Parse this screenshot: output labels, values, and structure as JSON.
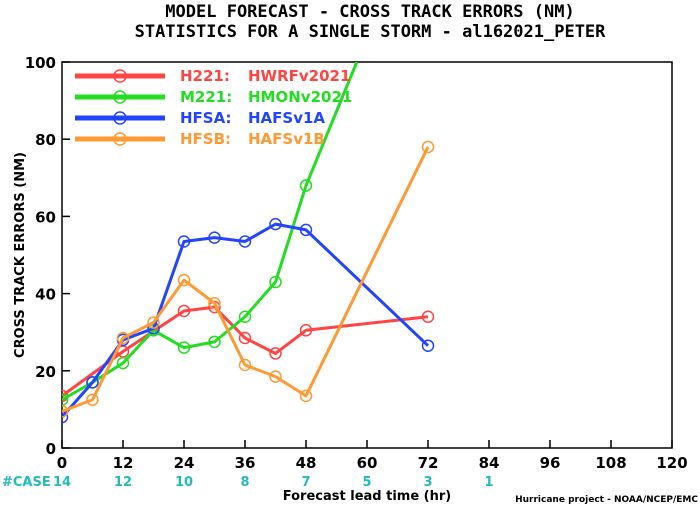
{
  "chart_data": {
    "type": "line",
    "title": "MODEL FORECAST - CROSS TRACK ERRORS (NM)",
    "subtitle": "STATISTICS FOR A SINGLE STORM - al162021_PETER",
    "xlabel": "Forecast lead time (hr)",
    "ylabel": "CROSS TRACK ERRORS (NM)",
    "xlim": [
      0,
      120
    ],
    "ylim": [
      0,
      100
    ],
    "x_ticks": [
      0,
      12,
      24,
      36,
      48,
      60,
      72,
      84,
      96,
      108,
      120
    ],
    "y_ticks": [
      0,
      20,
      40,
      60,
      80,
      100
    ],
    "grid": false,
    "legend_position": "top-left",
    "case_label": "#CASE",
    "cases": [
      {
        "x": 0,
        "label": "14"
      },
      {
        "x": 12,
        "label": "12"
      },
      {
        "x": 24,
        "label": "10"
      },
      {
        "x": 36,
        "label": "8"
      },
      {
        "x": 48,
        "label": "7"
      },
      {
        "x": 60,
        "label": "5"
      },
      {
        "x": 72,
        "label": "3"
      },
      {
        "x": 84,
        "label": "1"
      }
    ],
    "series": [
      {
        "name": "H221:",
        "legend_label": "HWRFv2021",
        "color": "#ff4444",
        "x": [
          0,
          12,
          24,
          30,
          36,
          42,
          48,
          72
        ],
        "y": [
          13.5,
          25,
          35.5,
          36.5,
          28.5,
          24.5,
          30.5,
          34
        ]
      },
      {
        "name": "M221:",
        "legend_label": "HMONv2021",
        "color": "#22dd22",
        "x": [
          0,
          6,
          12,
          18,
          24,
          30,
          36,
          42,
          48,
          58
        ],
        "y": [
          12.5,
          17,
          22,
          30.5,
          26,
          27.5,
          34,
          43,
          68,
          100
        ]
      },
      {
        "name": "HFSA:",
        "legend_label": "HAFSv1A",
        "color": "#2244ff",
        "x": [
          0,
          6,
          12,
          18,
          24,
          30,
          36,
          42,
          48,
          72
        ],
        "y": [
          8,
          17,
          28,
          31,
          53.5,
          54.5,
          53.5,
          58,
          56.5,
          26.5
        ]
      },
      {
        "name": "HFSB:",
        "legend_label": "HAFSv1B",
        "color": "#ff9933",
        "x": [
          0,
          6,
          12,
          18,
          24,
          30,
          36,
          42,
          48,
          72
        ],
        "y": [
          9.5,
          12.5,
          28.5,
          32.5,
          43.5,
          37.5,
          21.5,
          18.5,
          13.5,
          78
        ]
      }
    ],
    "point_markers": [
      {
        "series": 0,
        "idx": [
          0,
          1,
          2,
          3,
          4,
          5,
          6,
          7
        ]
      },
      {
        "series": 1,
        "idx": [
          0,
          1,
          2,
          3,
          4,
          5,
          6,
          7,
          8
        ]
      },
      {
        "series": 2,
        "idx": [
          0,
          1,
          2,
          3,
          4,
          5,
          6,
          7,
          8,
          9
        ]
      },
      {
        "series": 3,
        "idx": [
          0,
          1,
          2,
          3,
          4,
          5,
          6,
          7,
          8,
          9
        ]
      }
    ],
    "credit": "Hurricane project - NOAA/NCEP/EMC",
    "case_color": "#22bbbb",
    "case_prefix_color": "#22bbbb"
  }
}
